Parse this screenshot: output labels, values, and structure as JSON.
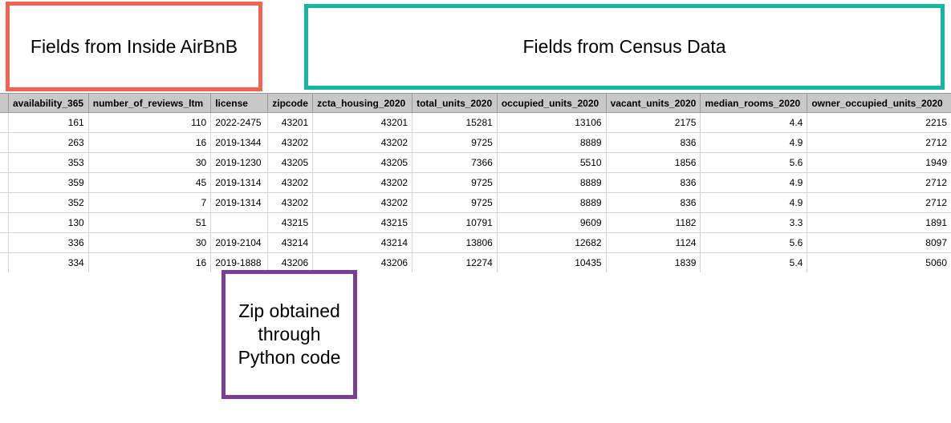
{
  "annotations": {
    "airbnb_fields": "Fields from Inside AirBnB",
    "census_fields": "Fields from Census Data",
    "zip_note_line1": "Zip obtained",
    "zip_note_line2": "through",
    "zip_note_line3": "Python code"
  },
  "colors": {
    "airbnb_box": "#f26451",
    "census_box": "#14b8a0",
    "zip_box": "#7a3e9a",
    "header_bg": "#c8c8c8"
  },
  "table": {
    "columns": [
      "",
      "availability_365",
      "number_of_reviews_ltm",
      "license",
      "zipcode",
      "zcta_housing_2020",
      "total_units_2020",
      "occupied_units_2020",
      "vacant_units_2020",
      "median_rooms_2020",
      "owner_occupied_units_2020"
    ],
    "rows": [
      [
        "",
        "161",
        "110",
        "2022-2475",
        "43201",
        "43201",
        "15281",
        "13106",
        "2175",
        "4.4",
        "2215"
      ],
      [
        "",
        "263",
        "16",
        "2019-1344",
        "43202",
        "43202",
        "9725",
        "8889",
        "836",
        "4.9",
        "2712"
      ],
      [
        "",
        "353",
        "30",
        "2019-1230",
        "43205",
        "43205",
        "7366",
        "5510",
        "1856",
        "5.6",
        "1949"
      ],
      [
        "",
        "359",
        "45",
        "2019-1314",
        "43202",
        "43202",
        "9725",
        "8889",
        "836",
        "4.9",
        "2712"
      ],
      [
        "",
        "352",
        "7",
        "2019-1314",
        "43202",
        "43202",
        "9725",
        "8889",
        "836",
        "4.9",
        "2712"
      ],
      [
        "",
        "130",
        "51",
        "",
        "43215",
        "43215",
        "10791",
        "9609",
        "1182",
        "3.3",
        "1891"
      ],
      [
        "",
        "336",
        "30",
        "2019-2104",
        "43214",
        "43214",
        "13806",
        "12682",
        "1124",
        "5.6",
        "8097"
      ],
      [
        "",
        "334",
        "16",
        "2019-1888",
        "43206",
        "43206",
        "12274",
        "10435",
        "1839",
        "5.4",
        "5060"
      ]
    ]
  }
}
